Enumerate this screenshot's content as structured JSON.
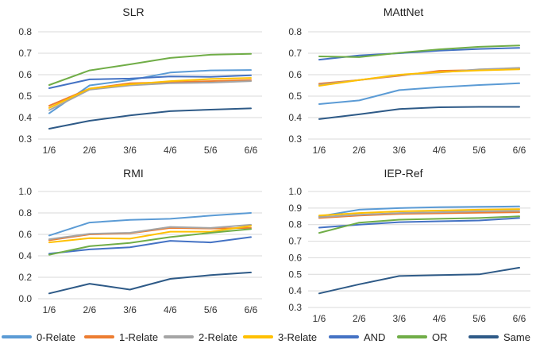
{
  "colors": {
    "0-Relate": "#5b9bd5",
    "1-Relate": "#ed7d31",
    "2-Relate": "#a5a5a5",
    "3-Relate": "#ffc000",
    "AND": "#4472c4",
    "OR": "#70ad47",
    "Same": "#2e5a87",
    "grid": "#d9d9d9"
  },
  "legend": [
    {
      "name": "0-Relate",
      "color": "#5b9bd5"
    },
    {
      "name": "1-Relate",
      "color": "#ed7d31"
    },
    {
      "name": "2-Relate",
      "color": "#a5a5a5"
    },
    {
      "name": "3-Relate",
      "color": "#ffc000"
    },
    {
      "name": "AND",
      "color": "#4472c4"
    },
    {
      "name": "OR",
      "color": "#70ad47"
    },
    {
      "name": "Same",
      "color": "#2e5a87"
    }
  ],
  "legend_placement": "bottom",
  "chart_data": [
    {
      "type": "line",
      "title": "SLR",
      "categories": [
        "1/6",
        "2/6",
        "3/6",
        "4/6",
        "5/6",
        "6/6"
      ],
      "ylim": [
        0.3,
        0.8
      ],
      "yticks": [
        "0.3",
        "0.4",
        "0.5",
        "0.6",
        "0.7",
        "0.8"
      ],
      "grid": true,
      "series": [
        {
          "name": "0-Relate",
          "values": [
            0.42,
            0.55,
            0.575,
            0.61,
            0.62,
            0.622
          ]
        },
        {
          "name": "1-Relate",
          "values": [
            0.455,
            0.535,
            0.56,
            0.565,
            0.57,
            0.575
          ]
        },
        {
          "name": "2-Relate",
          "values": [
            0.435,
            0.53,
            0.55,
            0.56,
            0.563,
            0.57
          ]
        },
        {
          "name": "3-Relate",
          "values": [
            0.445,
            0.535,
            0.555,
            0.57,
            0.58,
            0.585
          ]
        },
        {
          "name": "AND",
          "values": [
            0.537,
            0.578,
            0.582,
            0.592,
            0.59,
            0.597
          ]
        },
        {
          "name": "OR",
          "values": [
            0.552,
            0.62,
            0.648,
            0.678,
            0.693,
            0.697
          ]
        },
        {
          "name": "Same",
          "values": [
            0.348,
            0.385,
            0.41,
            0.43,
            0.437,
            0.443
          ]
        }
      ]
    },
    {
      "type": "line",
      "title": "MAttNet",
      "categories": [
        "1/6",
        "2/6",
        "3/6",
        "4/6",
        "5/6",
        "6/6"
      ],
      "ylim": [
        0.3,
        0.8
      ],
      "yticks": [
        "0.3",
        "0.4",
        "0.5",
        "0.6",
        "0.7",
        "0.8"
      ],
      "grid": true,
      "series": [
        {
          "name": "0-Relate",
          "values": [
            0.463,
            0.48,
            0.528,
            0.542,
            0.552,
            0.56
          ]
        },
        {
          "name": "1-Relate",
          "values": [
            0.558,
            0.575,
            0.595,
            0.618,
            0.622,
            0.628
          ]
        },
        {
          "name": "2-Relate",
          "values": [
            0.553,
            0.575,
            0.598,
            0.61,
            0.625,
            0.632
          ]
        },
        {
          "name": "3-Relate",
          "values": [
            0.548,
            0.575,
            0.6,
            0.612,
            0.62,
            0.625
          ]
        },
        {
          "name": "AND",
          "values": [
            0.67,
            0.69,
            0.7,
            0.712,
            0.72,
            0.725
          ]
        },
        {
          "name": "OR",
          "values": [
            0.685,
            0.682,
            0.702,
            0.718,
            0.73,
            0.736
          ]
        },
        {
          "name": "Same",
          "values": [
            0.393,
            0.415,
            0.44,
            0.448,
            0.45,
            0.45
          ]
        }
      ]
    },
    {
      "type": "line",
      "title": "RMI",
      "categories": [
        "1/6",
        "2/6",
        "3/6",
        "4/6",
        "5/6",
        "6/6"
      ],
      "ylim": [
        0.0,
        1.0
      ],
      "yticks": [
        "0.0",
        "0.2",
        "0.4",
        "0.6",
        "0.8",
        "1.0"
      ],
      "grid": true,
      "series": [
        {
          "name": "0-Relate",
          "values": [
            0.59,
            0.71,
            0.735,
            0.745,
            0.775,
            0.8
          ]
        },
        {
          "name": "1-Relate",
          "values": [
            0.545,
            0.6,
            0.61,
            0.66,
            0.655,
            0.66
          ]
        },
        {
          "name": "2-Relate",
          "values": [
            0.555,
            0.605,
            0.615,
            0.67,
            0.66,
            0.69
          ]
        },
        {
          "name": "3-Relate",
          "values": [
            0.525,
            0.565,
            0.56,
            0.625,
            0.625,
            0.68
          ]
        },
        {
          "name": "AND",
          "values": [
            0.42,
            0.46,
            0.48,
            0.54,
            0.525,
            0.575
          ]
        },
        {
          "name": "OR",
          "values": [
            0.41,
            0.49,
            0.52,
            0.575,
            0.615,
            0.65
          ]
        },
        {
          "name": "Same",
          "values": [
            0.05,
            0.14,
            0.085,
            0.185,
            0.22,
            0.245
          ]
        }
      ]
    },
    {
      "type": "line",
      "title": "IEP-Ref",
      "categories": [
        "1/6",
        "2/6",
        "3/6",
        "4/6",
        "5/6",
        "6/6"
      ],
      "ylim": [
        0.3,
        1.0
      ],
      "yticks": [
        "0.3",
        "0.4",
        "0.5",
        "0.6",
        "0.7",
        "0.8",
        "0.9",
        "1.0"
      ],
      "grid": true,
      "series": [
        {
          "name": "0-Relate",
          "values": [
            0.85,
            0.89,
            0.9,
            0.905,
            0.908,
            0.91
          ]
        },
        {
          "name": "1-Relate",
          "values": [
            0.84,
            0.855,
            0.865,
            0.868,
            0.872,
            0.875
          ]
        },
        {
          "name": "2-Relate",
          "values": [
            0.845,
            0.86,
            0.87,
            0.875,
            0.88,
            0.883
          ]
        },
        {
          "name": "3-Relate",
          "values": [
            0.855,
            0.87,
            0.88,
            0.885,
            0.89,
            0.893
          ]
        },
        {
          "name": "AND",
          "values": [
            0.782,
            0.8,
            0.815,
            0.82,
            0.825,
            0.84
          ]
        },
        {
          "name": "OR",
          "values": [
            0.75,
            0.812,
            0.83,
            0.835,
            0.84,
            0.85
          ]
        },
        {
          "name": "Same",
          "values": [
            0.385,
            0.44,
            0.49,
            0.495,
            0.5,
            0.54
          ]
        }
      ]
    }
  ]
}
